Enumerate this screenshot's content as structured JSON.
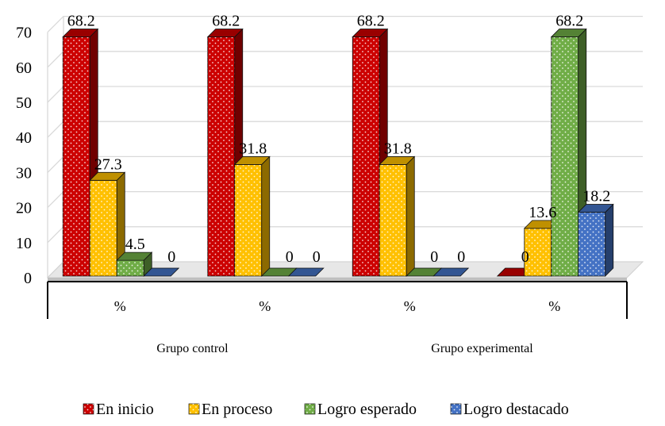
{
  "chart_data": {
    "type": "bar",
    "style": "3d-clustered-column",
    "categories": [
      "%",
      "%",
      "%",
      "%"
    ],
    "groups": [
      {
        "label": "Grupo control",
        "span": [
          0,
          1
        ]
      },
      {
        "label": "Grupo experimental",
        "span": [
          2,
          3
        ]
      }
    ],
    "series": [
      {
        "name": "En inicio",
        "color": "#cc0000",
        "values": [
          68.2,
          68.2,
          68.2,
          0
        ]
      },
      {
        "name": "En proceso",
        "color": "#ffc000",
        "values": [
          27.3,
          31.8,
          31.8,
          13.6
        ]
      },
      {
        "name": "Logro esperado",
        "color": "#70ad47",
        "values": [
          4.5,
          0,
          0,
          68.2
        ]
      },
      {
        "name": "Logro destacado",
        "color": "#4472c4",
        "values": [
          0,
          0,
          0,
          18.2
        ]
      }
    ],
    "value_labels": [
      [
        "68.2",
        "68.2",
        "68.2",
        "0"
      ],
      [
        "27.3",
        "31.8",
        "31.8",
        "13.6"
      ],
      [
        "4.5",
        "0",
        "0",
        "68.2"
      ],
      [
        "0",
        "0",
        "0",
        "18.2"
      ]
    ],
    "yticks": [
      0,
      10,
      20,
      30,
      40,
      50,
      60,
      70
    ],
    "ylim": [
      0,
      70
    ],
    "grid": true,
    "legend": "bottom",
    "title": "",
    "xlabel": "",
    "ylabel": ""
  }
}
